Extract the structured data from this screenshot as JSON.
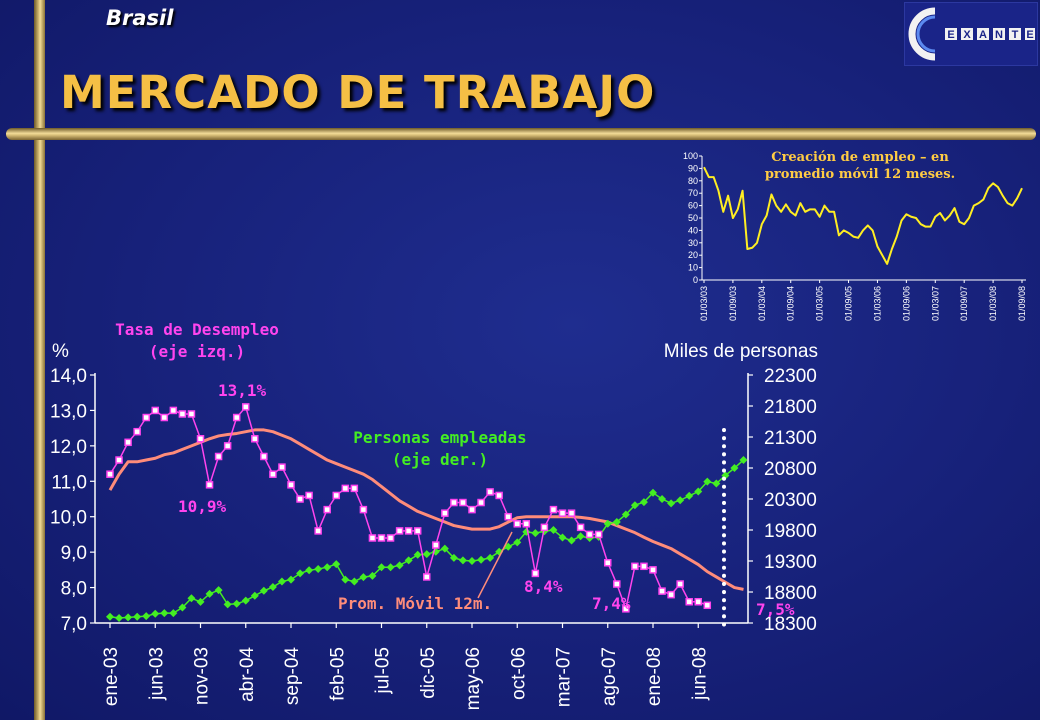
{
  "header": {
    "country": "Brasil",
    "title": "MERCADO DE TRABAJO",
    "logo_text": "EXANTE"
  },
  "colors": {
    "unemployment": "#ff44ee",
    "moving_avg": "#ff8c7a",
    "employed": "#44ee22",
    "title": "#f5bf45",
    "inset_line": "#ffee22",
    "inset_title": "#ffcc44"
  },
  "chart_data": [
    {
      "type": "line",
      "annotations": {
        "left_unit": "%",
        "right_unit": "Miles de personas",
        "unemp_series_label": "Tasa de Desempleo\n(eje izq.)",
        "emp_series_label": "Personas empleadas\n(eje der.)",
        "ma_label": "Prom. Móvil 12m.",
        "label_peak": "13,1%",
        "label_low1": "10,9%",
        "label_low2": "8,4%",
        "label_low3": "7,4%",
        "label_last": "7,5%"
      },
      "x_tick_labels": [
        "ene-03",
        "jun-03",
        "nov-03",
        "abr-04",
        "sep-04",
        "feb-05",
        "jul-05",
        "dic-05",
        "may-06",
        "oct-06",
        "mar-07",
        "ago-07",
        "ene-08",
        "jun-08"
      ],
      "left_axis": {
        "ylim": [
          7.0,
          14.0
        ],
        "ticks": [
          "7,0",
          "8,0",
          "9,0",
          "10,0",
          "11,0",
          "12,0",
          "13,0",
          "14,0"
        ]
      },
      "right_axis": {
        "ylim": [
          18300,
          22300
        ],
        "ticks": [
          "18300",
          "18800",
          "19300",
          "19800",
          "20300",
          "20800",
          "21300",
          "21800",
          "22300"
        ]
      },
      "series": [
        {
          "name": "Tasa de Desempleo",
          "axis": "left",
          "values": [
            11.2,
            11.6,
            12.1,
            12.4,
            12.8,
            13.0,
            12.8,
            13.0,
            12.9,
            12.9,
            12.2,
            10.9,
            11.7,
            12.0,
            12.8,
            13.1,
            12.2,
            11.7,
            11.2,
            11.4,
            10.9,
            10.5,
            10.6,
            9.6,
            10.2,
            10.6,
            10.8,
            10.8,
            10.2,
            9.4,
            9.4,
            9.4,
            9.6,
            9.6,
            9.6,
            8.3,
            9.2,
            10.1,
            10.4,
            10.4,
            10.2,
            10.4,
            10.7,
            10.6,
            10.0,
            9.8,
            9.8,
            8.4,
            9.7,
            10.2,
            10.1,
            10.1,
            9.7,
            9.5,
            9.5,
            8.7,
            8.1,
            7.4,
            8.6,
            8.6,
            8.5,
            7.9,
            7.8,
            8.1,
            7.6,
            7.6,
            7.5
          ]
        },
        {
          "name": "Prom. Móvil 12m.",
          "axis": "left",
          "values": [
            10.75,
            11.2,
            11.55,
            11.55,
            11.6,
            11.65,
            11.75,
            11.8,
            11.9,
            12.0,
            12.1,
            12.2,
            12.28,
            12.32,
            12.35,
            12.4,
            12.45,
            12.45,
            12.4,
            12.3,
            12.2,
            12.05,
            11.9,
            11.75,
            11.6,
            11.5,
            11.4,
            11.3,
            11.2,
            11.05,
            10.85,
            10.65,
            10.45,
            10.3,
            10.15,
            10.05,
            9.95,
            9.85,
            9.75,
            9.7,
            9.65,
            9.65,
            9.65,
            9.72,
            9.85,
            9.97,
            10.0,
            10.0,
            10.0,
            10.0,
            10.0,
            10.0,
            9.98,
            9.95,
            9.9,
            9.85,
            9.75,
            9.65,
            9.55,
            9.42,
            9.3,
            9.2,
            9.1,
            8.95,
            8.8,
            8.65,
            8.45,
            8.3,
            8.15,
            8.0,
            7.95
          ]
        },
        {
          "name": "Personas empleadas",
          "axis": "right",
          "values": [
            18400,
            18380,
            18390,
            18400,
            18410,
            18450,
            18460,
            18460,
            18550,
            18700,
            18640,
            18770,
            18830,
            18600,
            18610,
            18660,
            18740,
            18820,
            18880,
            18970,
            19000,
            19100,
            19150,
            19170,
            19200,
            19250,
            19000,
            18970,
            19040,
            19060,
            19200,
            19200,
            19230,
            19310,
            19400,
            19410,
            19450,
            19500,
            19350,
            19310,
            19300,
            19320,
            19350,
            19450,
            19530,
            19600,
            19770,
            19750,
            19780,
            19800,
            19680,
            19630,
            19700,
            19670,
            19690,
            19900,
            19930,
            20050,
            20200,
            20250,
            20400,
            20300,
            20230,
            20280,
            20350,
            20420,
            20580,
            20550,
            20680,
            20800,
            20930
          ]
        }
      ]
    },
    {
      "type": "line",
      "title": "Creación de empleo – en\npromedio móvil 12 meses.",
      "ylim": [
        0,
        100
      ],
      "y_ticks": [
        "0",
        "10",
        "20",
        "30",
        "40",
        "50",
        "60",
        "70",
        "80",
        "90",
        "100"
      ],
      "x_tick_labels": [
        "01/03/03",
        "01/09/03",
        "01/03/04",
        "01/09/04",
        "01/03/05",
        "01/09/05",
        "01/03/06",
        "01/09/06",
        "01/03/07",
        "01/09/07",
        "01/03/08",
        "01/09/08"
      ],
      "series": [
        {
          "values": [
            91,
            83,
            83,
            72,
            55,
            68,
            50,
            57,
            72,
            25,
            26,
            30,
            45,
            52,
            69,
            60,
            55,
            61,
            55,
            52,
            62,
            55,
            57,
            57,
            51,
            60,
            55,
            55,
            36,
            40,
            38,
            35,
            34,
            40,
            44,
            40,
            27,
            20,
            13,
            25,
            35,
            48,
            53,
            51,
            50,
            45,
            43,
            43,
            51,
            54,
            48,
            52,
            58,
            47,
            45,
            50,
            60,
            62,
            65,
            74,
            78,
            75,
            68,
            62,
            60,
            66,
            74
          ]
        }
      ]
    }
  ]
}
